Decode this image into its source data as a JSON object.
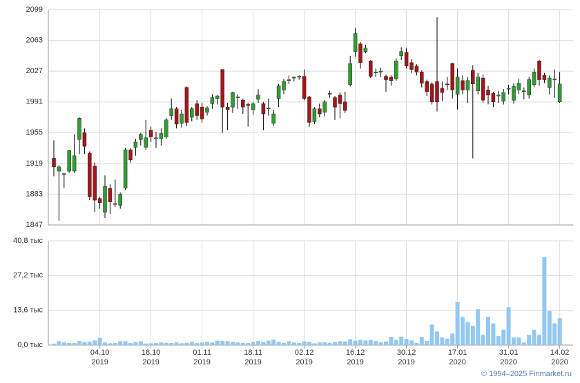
{
  "chart_data": [
    {
      "type": "candlestick",
      "up_color": "#2f9e2f",
      "down_color": "#a3161a",
      "wick_color": "#000000",
      "ylim": [
        1847,
        2099
      ],
      "yticks": [
        1847,
        1883,
        1919,
        1955,
        1991,
        2027,
        2063,
        2099
      ],
      "grid": true,
      "open": [
        1925,
        1910,
        1906,
        1910,
        1910,
        1947,
        1955,
        1931,
        1916,
        1878,
        1862,
        1890,
        1872,
        1870,
        1890,
        1935,
        1938,
        1947,
        1938,
        1958,
        1948,
        1948,
        1950,
        1975,
        1983,
        1966,
        2008,
        1973,
        1989,
        1985,
        1979,
        1989,
        1995,
        2029,
        1985,
        1985,
        1996,
        1993,
        1988,
        1982,
        1994,
        1989,
        1983,
        1966,
        1995,
        2005,
        2016,
        2019,
        2020,
        2021,
        1997,
        1968,
        1983,
        1979,
        2000,
        1996,
        1999,
        1991,
        2011,
        2050,
        2059,
        2050,
        2039,
        2025,
        2026,
        2021,
        2020,
        2018,
        2045,
        2049,
        2037,
        2033,
        2026,
        2015,
        2012,
        2015,
        2007,
        2012,
        2036,
        2000,
        2016,
        2005,
        2028,
        2004,
        2019,
        2005,
        2001,
        1998,
        1992,
        2006,
        1993,
        2005,
        2003,
        1999,
        2011,
        2039,
        2022,
        2008,
        2017,
        1991
      ],
      "high": [
        1946,
        1917,
        1908,
        1935,
        1953,
        1973,
        1960,
        1933,
        1920,
        1880,
        1905,
        1895,
        1900,
        1885,
        1937,
        1937,
        1948,
        1955,
        1970,
        1962,
        1956,
        1960,
        1972,
        1995,
        1985,
        1982,
        2009,
        1985,
        1993,
        1990,
        1986,
        2000,
        1999,
        2029,
        1990,
        2003,
        2000,
        1995,
        1990,
        1991,
        2006,
        1991,
        1995,
        1982,
        2012,
        2018,
        2022,
        2021,
        2022,
        2029,
        1998,
        1985,
        1989,
        1993,
        2004,
        1998,
        2002,
        2003,
        2045,
        2078,
        2061,
        2058,
        2040,
        2030,
        2031,
        2023,
        2022,
        2042,
        2055,
        2054,
        2041,
        2035,
        2028,
        2017,
        2014,
        2090,
        2015,
        2020,
        2037,
        2030,
        2022,
        2020,
        2034,
        2025,
        2023,
        2010,
        2003,
        2004,
        2006,
        2011,
        2013,
        2018,
        2008,
        2020,
        2030,
        2040,
        2025,
        2022,
        2029,
        2026
      ],
      "low": [
        1904,
        1852,
        1890,
        1908,
        1908,
        1930,
        1930,
        1876,
        1862,
        1866,
        1855,
        1860,
        1868,
        1866,
        1888,
        1920,
        1928,
        1940,
        1935,
        1944,
        1937,
        1940,
        1948,
        1970,
        1960,
        1961,
        1963,
        1968,
        1970,
        1967,
        1975,
        1983,
        1988,
        1955,
        1958,
        1978,
        1983,
        1977,
        1962,
        1976,
        1990,
        1958,
        1975,
        1963,
        1985,
        2000,
        2012,
        2015,
        2017,
        1993,
        1962,
        1965,
        1973,
        1974,
        1996,
        1970,
        1972,
        1978,
        2009,
        2044,
        2030,
        2048,
        2019,
        2020,
        2020,
        2003,
        2010,
        2016,
        2040,
        2030,
        2025,
        2022,
        2008,
        1998,
        1988,
        1980,
        1992,
        2005,
        1995,
        1982,
        2000,
        1990,
        1925,
        2000,
        1990,
        1988,
        1985,
        1990,
        1988,
        2000,
        1989,
        2000,
        1994,
        1995,
        2008,
        2010,
        2013,
        2000,
        1996,
        1990
      ],
      "close": [
        1915,
        1915,
        1907,
        1934,
        1928,
        1972,
        1939,
        1880,
        1876,
        1873,
        1892,
        1874,
        1871,
        1883,
        1935,
        1923,
        1944,
        1953,
        1949,
        1950,
        1949,
        1954,
        1970,
        1983,
        1965,
        1977,
        1967,
        1983,
        1975,
        1971,
        1984,
        1996,
        1998,
        1985,
        1982,
        2002,
        1997,
        1985,
        1987,
        1989,
        1999,
        1977,
        1984,
        1977,
        2010,
        2015,
        2017,
        2020,
        2021,
        1995,
        1967,
        1983,
        1977,
        1991,
        2001,
        1985,
        1989,
        1981,
        2036,
        2071,
        2037,
        2054,
        2021,
        2026,
        2027,
        2017,
        2016,
        2039,
        2050,
        2033,
        2029,
        2026,
        2013,
        2003,
        1991,
        1991,
        2002,
        2011,
        2005,
        2020,
        2005,
        2016,
        2012,
        2020,
        1993,
        1999,
        1991,
        1999,
        2002,
        2007,
        2009,
        2013,
        2004,
        2017,
        2026,
        2017,
        2017,
        2019,
        2018,
        2012
      ]
    },
    {
      "type": "bar",
      "color": "#93c8f0",
      "ylim": [
        0,
        40.8
      ],
      "yticks": [
        {
          "value": 0,
          "label": "0,0 тыс"
        },
        {
          "value": 13.6,
          "label": "13,6 тыс"
        },
        {
          "value": 27.2,
          "label": "27,2 тыс"
        },
        {
          "value": 40.8,
          "label": "40,8 тыс"
        }
      ],
      "grid": true,
      "categories": [
        null,
        null,
        null,
        null,
        null,
        null,
        null,
        null,
        null,
        "04.10",
        null,
        null,
        null,
        null,
        null,
        null,
        null,
        null,
        null,
        "18.10",
        null,
        null,
        null,
        null,
        null,
        null,
        null,
        null,
        null,
        "01.11",
        null,
        null,
        null,
        null,
        null,
        null,
        null,
        null,
        null,
        "18.11",
        null,
        null,
        null,
        null,
        null,
        null,
        null,
        null,
        null,
        "02.12",
        null,
        null,
        null,
        null,
        null,
        null,
        null,
        null,
        null,
        "16.12",
        null,
        null,
        null,
        null,
        null,
        null,
        null,
        null,
        null,
        "30.12",
        null,
        null,
        null,
        null,
        null,
        null,
        null,
        null,
        null,
        "17.01",
        null,
        null,
        null,
        null,
        null,
        null,
        null,
        null,
        null,
        "31.01",
        null,
        null,
        null,
        null,
        null,
        null,
        null,
        null,
        null,
        "14.02"
      ],
      "category_years": [
        null,
        null,
        null,
        null,
        null,
        null,
        null,
        null,
        null,
        "2019",
        null,
        null,
        null,
        null,
        null,
        null,
        null,
        null,
        null,
        "2019",
        null,
        null,
        null,
        null,
        null,
        null,
        null,
        null,
        null,
        "2019",
        null,
        null,
        null,
        null,
        null,
        null,
        null,
        null,
        null,
        "2019",
        null,
        null,
        null,
        null,
        null,
        null,
        null,
        null,
        null,
        "2019",
        null,
        null,
        null,
        null,
        null,
        null,
        null,
        null,
        null,
        "2019",
        null,
        null,
        null,
        null,
        null,
        null,
        null,
        null,
        null,
        "2019",
        null,
        null,
        null,
        null,
        null,
        null,
        null,
        null,
        null,
        "2020",
        null,
        null,
        null,
        null,
        null,
        null,
        null,
        null,
        null,
        "2020",
        null,
        null,
        null,
        null,
        null,
        null,
        null,
        null,
        null,
        "2020"
      ],
      "values": [
        0.5,
        1.5,
        1,
        0.8,
        0.8,
        1.6,
        1.2,
        1.3,
        1.8,
        2.8,
        1.0,
        0.7,
        0.8,
        1.5,
        1.5,
        0.8,
        1.2,
        1.5,
        0.6,
        0.7,
        0.8,
        1.0,
        0.9,
        0.8,
        1.0,
        0.7,
        0.9,
        1.2,
        0.8,
        1.0,
        1.3,
        1.0,
        1.7,
        1.6,
        1.5,
        1.2,
        1.0,
        0.8,
        0.8,
        1.2,
        1.6,
        1.2,
        1.7,
        2.1,
        1.3,
        0.9,
        1.5,
        1.0,
        0.8,
        1.4,
        1.2,
        0.7,
        1.0,
        1.1,
        0.9,
        1.2,
        1.5,
        1.4,
        2.3,
        1.7,
        2.0,
        1.8,
        2.0,
        1.6,
        1.1,
        1.4,
        3.2,
        2.0,
        3.3,
        2.4,
        1.8,
        0.9,
        3.2,
        1.6,
        8.0,
        5.3,
        3.0,
        2.5,
        4.5,
        16.8,
        11.0,
        9.0,
        7.5,
        14.0,
        4.0,
        11.0,
        8.5,
        3.5,
        6.0,
        14.8,
        3.0,
        3.0,
        1.0,
        4.0,
        6.0,
        4.0,
        34.5,
        13.3,
        8.5,
        10.5
      ]
    }
  ],
  "footer": "© 1994–2025 Finmarket.ru"
}
